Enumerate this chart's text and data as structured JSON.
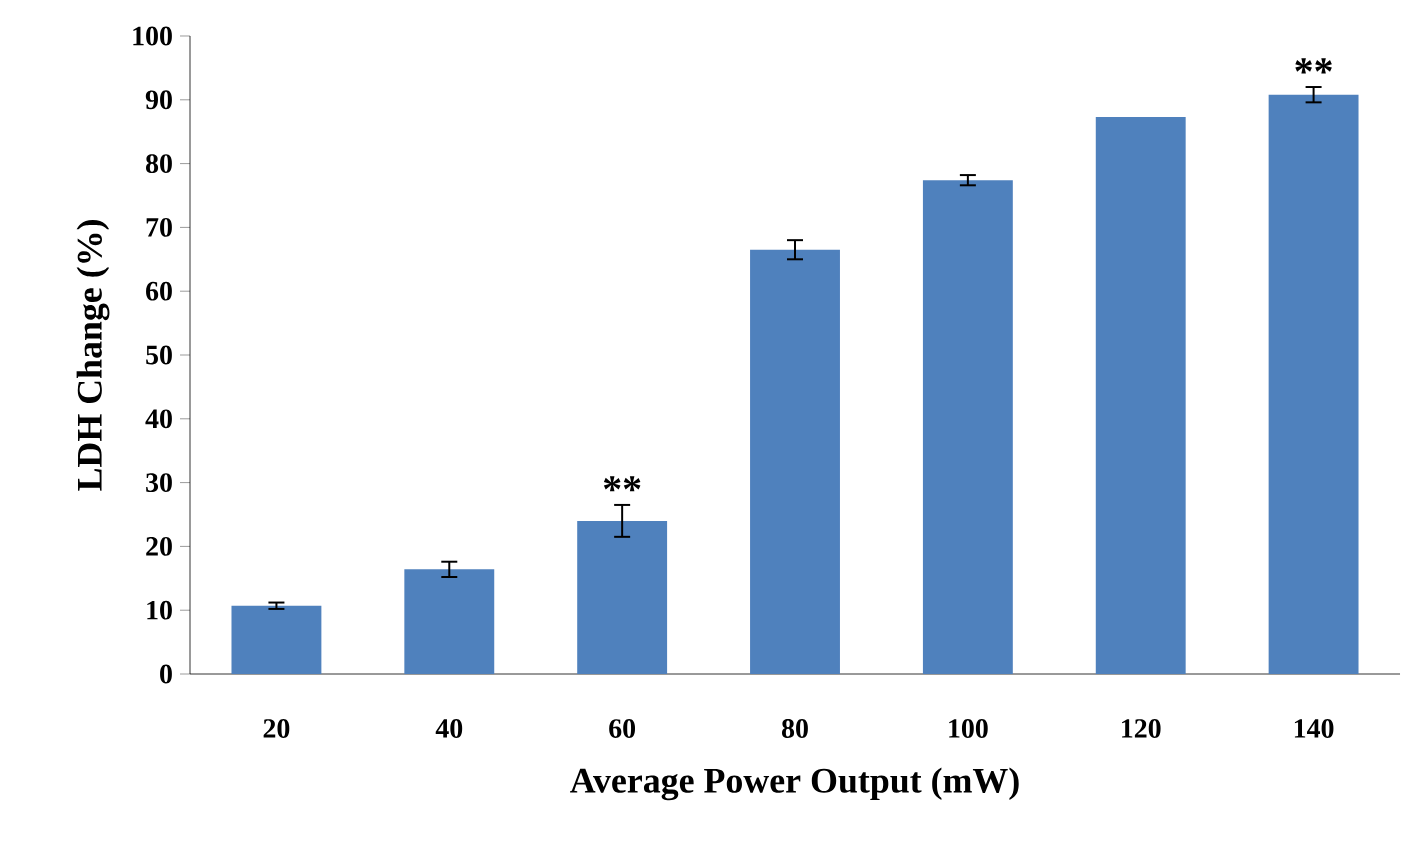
{
  "chart_data": {
    "type": "bar",
    "xlabel": "Average Power Output (mW)",
    "ylabel": "LDH Change (%)",
    "categories": [
      "20",
      "40",
      "60",
      "80",
      "100",
      "120",
      "140"
    ],
    "values": [
      10.7,
      16.4,
      24.0,
      66.5,
      77.4,
      87.3,
      90.8
    ],
    "errors": [
      0.5,
      1.2,
      2.5,
      1.5,
      0.8,
      null,
      1.2
    ],
    "color": "#4f81bd",
    "ylim": [
      0,
      100
    ],
    "yticks": [
      0,
      10,
      20,
      30,
      40,
      50,
      60,
      70,
      80,
      90,
      100
    ],
    "annotations": [
      {
        "text": "**",
        "x": "60",
        "y": 26.5
      },
      {
        "text": "**",
        "x": "140",
        "y": 92
      }
    ],
    "grid": false
  }
}
